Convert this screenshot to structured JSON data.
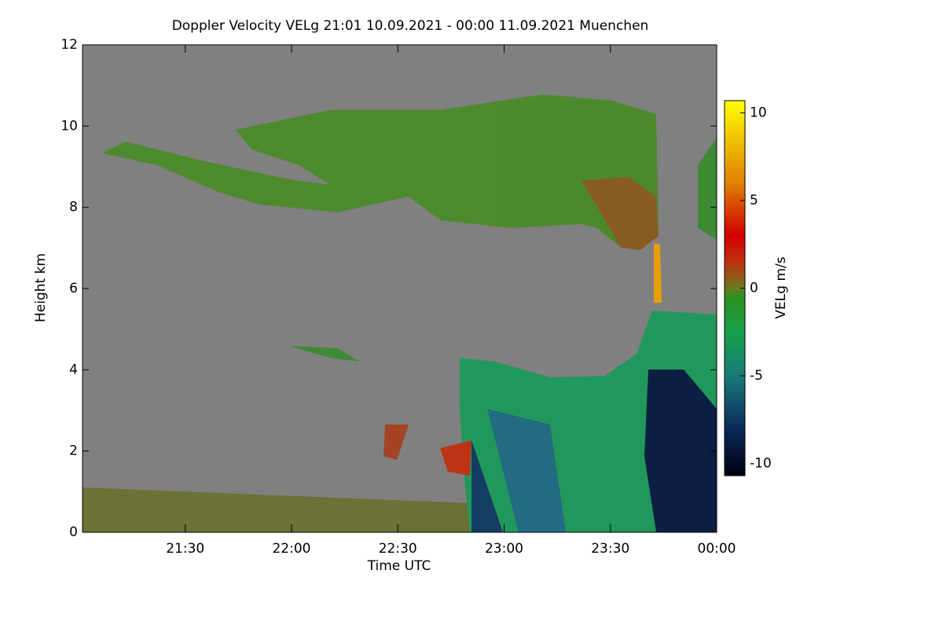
{
  "chart_data": {
    "type": "heatmap",
    "title": "Doppler Velocity VELg   21:01 10.09.2021 - 00:00 11.09.2021 Muenchen",
    "x_label": "Time UTC",
    "y_label": "Height km",
    "colorbar_label": "VELg m/s",
    "xlim": [
      1261,
      1440
    ],
    "xticks": [
      {
        "value": 1290,
        "label": "21:30"
      },
      {
        "value": 1320,
        "label": "22:00"
      },
      {
        "value": 1350,
        "label": "22:30"
      },
      {
        "value": 1380,
        "label": "23:00"
      },
      {
        "value": 1410,
        "label": "23:30"
      },
      {
        "value": 1440,
        "label": "00:00"
      }
    ],
    "ylim": [
      0,
      12
    ],
    "yticks": [
      0,
      2,
      4,
      6,
      8,
      10,
      12
    ],
    "zlim": [
      -10.7,
      10.7
    ],
    "zticks": [
      -10,
      -5,
      0,
      5,
      10
    ],
    "colormap": [
      [
        -10.7,
        "#000010"
      ],
      [
        -8,
        "#0a2a5a"
      ],
      [
        -5,
        "#1a7a78"
      ],
      [
        -2.5,
        "#17a04a"
      ],
      [
        -0.5,
        "#2a9020"
      ],
      [
        0,
        "#6a7a20"
      ],
      [
        1.5,
        "#c03010"
      ],
      [
        3,
        "#d00000"
      ],
      [
        6,
        "#e08000"
      ],
      [
        10.7,
        "#ffff00"
      ]
    ],
    "background": "#808080"
  }
}
